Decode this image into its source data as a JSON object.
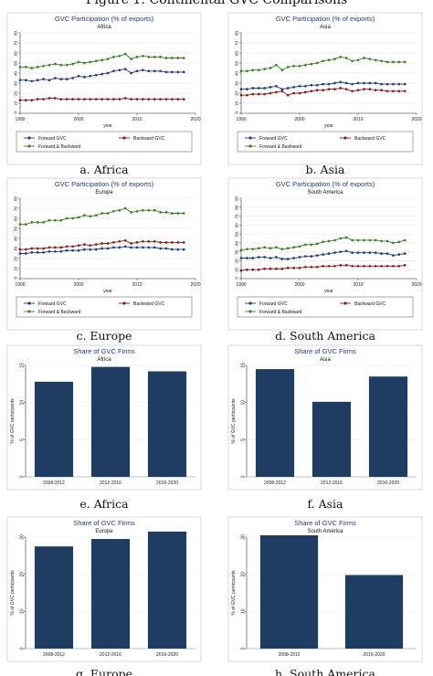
{
  "figure_title": "Figure 1: Continental GVC Comparisons",
  "chart_data": [
    {
      "type": "line",
      "caption": "a. Africa",
      "title": "GVC Participation (% of exports)",
      "subtitle": "Africa",
      "xlabel": "year",
      "ylim": [
        0,
        80
      ],
      "yticks": [
        0,
        10,
        20,
        30,
        40,
        50,
        60,
        70,
        80
      ],
      "xticks": [
        1990,
        2000,
        2010,
        2020
      ],
      "xlim": [
        1990,
        2020
      ],
      "x": [
        1990,
        1991,
        1992,
        1993,
        1994,
        1995,
        1996,
        1997,
        1998,
        1999,
        2000,
        2001,
        2002,
        2003,
        2004,
        2005,
        2006,
        2007,
        2008,
        2009,
        2010,
        2011,
        2012,
        2013,
        2014,
        2015,
        2016,
        2017,
        2018
      ],
      "series": [
        {
          "name": "Forward GVC",
          "color": "#1f3d7a",
          "values": [
            33,
            33,
            32,
            33,
            34,
            33,
            35,
            34,
            34,
            35,
            37,
            36,
            37,
            38,
            39,
            40,
            42,
            43,
            44,
            40,
            42,
            43,
            42,
            42,
            42,
            41,
            41,
            41,
            41
          ]
        },
        {
          "name": "Backward GVC",
          "color": "#8b1a1a",
          "values": [
            13,
            13,
            13,
            14,
            14,
            15,
            15,
            14,
            14,
            14,
            14,
            14,
            14,
            14,
            14,
            14,
            14,
            14,
            15,
            14,
            14,
            14,
            14,
            14,
            14,
            14,
            14,
            14,
            14
          ]
        },
        {
          "name": "Forward & Backward",
          "color": "#3f7f2a",
          "values": [
            46,
            46,
            45,
            46,
            47,
            48,
            49,
            48,
            48,
            49,
            51,
            50,
            51,
            52,
            53,
            54,
            56,
            57,
            59,
            54,
            56,
            57,
            56,
            56,
            56,
            55,
            55,
            55,
            55
          ]
        }
      ],
      "legend": "bottom"
    },
    {
      "type": "line",
      "caption": "b. Asia",
      "title": "GVC Participation (% of exports)",
      "subtitle": "Asia",
      "xlabel": "year",
      "ylim": [
        0,
        80
      ],
      "yticks": [
        0,
        10,
        20,
        30,
        40,
        50,
        60,
        70,
        80
      ],
      "xticks": [
        1990,
        2000,
        2010,
        2020
      ],
      "xlim": [
        1990,
        2020
      ],
      "x": [
        1990,
        1991,
        1992,
        1993,
        1994,
        1995,
        1996,
        1997,
        1998,
        1999,
        2000,
        2001,
        2002,
        2003,
        2004,
        2005,
        2006,
        2007,
        2008,
        2009,
        2010,
        2011,
        2012,
        2013,
        2014,
        2015,
        2016,
        2017,
        2018
      ],
      "series": [
        {
          "name": "Forward GVC",
          "color": "#1f3d7a",
          "values": [
            24,
            24,
            25,
            25,
            25,
            26,
            27,
            24,
            25,
            26,
            27,
            27,
            28,
            28,
            29,
            29,
            30,
            31,
            30,
            29,
            30,
            30,
            30,
            30,
            29,
            29,
            29,
            29,
            29
          ]
        },
        {
          "name": "Backward GVC",
          "color": "#8b1a1a",
          "values": [
            18,
            18,
            19,
            19,
            19,
            20,
            21,
            22,
            18,
            20,
            20,
            21,
            22,
            23,
            23,
            24,
            24,
            25,
            24,
            22,
            23,
            24,
            24,
            23,
            23,
            22,
            22,
            22,
            22
          ]
        },
        {
          "name": "Forward & Backward",
          "color": "#3f7f2a",
          "values": [
            42,
            42,
            43,
            43,
            44,
            45,
            48,
            43,
            46,
            47,
            47,
            48,
            49,
            50,
            52,
            53,
            54,
            56,
            55,
            52,
            53,
            55,
            54,
            53,
            52,
            51,
            51,
            51,
            51
          ]
        }
      ],
      "legend": "bottom"
    },
    {
      "type": "line",
      "caption": "c. Europe",
      "title": "GVC Participation (% of exports)",
      "subtitle": "Europe",
      "xlabel": "year",
      "ylim": [
        0,
        80
      ],
      "yticks": [
        0,
        10,
        20,
        30,
        40,
        50,
        60,
        70,
        80
      ],
      "xticks": [
        1990,
        2000,
        2010,
        2020
      ],
      "xlim": [
        1990,
        2020
      ],
      "x": [
        1990,
        1991,
        1992,
        1993,
        1994,
        1995,
        1996,
        1997,
        1998,
        1999,
        2000,
        2001,
        2002,
        2003,
        2004,
        2005,
        2006,
        2007,
        2008,
        2009,
        2010,
        2011,
        2012,
        2013,
        2014,
        2015,
        2016,
        2017,
        2018
      ],
      "series": [
        {
          "name": "Forward GVC",
          "color": "#1f3d7a",
          "values": [
            25,
            25,
            26,
            26,
            26,
            27,
            27,
            27,
            28,
            28,
            28,
            29,
            29,
            29,
            30,
            30,
            31,
            31,
            32,
            31,
            31,
            31,
            31,
            31,
            30,
            30,
            29,
            29,
            29
          ]
        },
        {
          "name": "Backward GVC",
          "color": "#8b1a1a",
          "values": [
            29,
            29,
            30,
            30,
            30,
            31,
            31,
            31,
            32,
            32,
            33,
            34,
            33,
            34,
            35,
            35,
            36,
            37,
            38,
            35,
            36,
            37,
            37,
            37,
            36,
            36,
            36,
            36,
            36
          ]
        },
        {
          "name": "Forward & Backward",
          "color": "#3f7f2a",
          "values": [
            54,
            54,
            56,
            56,
            56,
            58,
            58,
            58,
            60,
            60,
            61,
            63,
            62,
            63,
            65,
            65,
            67,
            68,
            70,
            66,
            67,
            68,
            68,
            68,
            66,
            66,
            65,
            65,
            65
          ]
        }
      ],
      "legend": "bottom"
    },
    {
      "type": "line",
      "caption": "d. South America",
      "title": "GVC Participation (% of exports)",
      "subtitle": "South America",
      "xlabel": "year",
      "ylim": [
        0,
        90
      ],
      "yticks": [
        0,
        10,
        20,
        30,
        40,
        50,
        60,
        70,
        80,
        90
      ],
      "xticks": [
        1990,
        2000,
        2010,
        2020
      ],
      "xlim": [
        1990,
        2020
      ],
      "x": [
        1990,
        1991,
        1992,
        1993,
        1994,
        1995,
        1996,
        1997,
        1998,
        1999,
        2000,
        2001,
        2002,
        2003,
        2004,
        2005,
        2006,
        2007,
        2008,
        2009,
        2010,
        2011,
        2012,
        2013,
        2014,
        2015,
        2016,
        2017,
        2018
      ],
      "series": [
        {
          "name": "Forward GVC",
          "color": "#1f3d7a",
          "values": [
            23,
            23,
            23,
            24,
            24,
            23,
            24,
            22,
            22,
            23,
            24,
            25,
            25,
            26,
            27,
            28,
            29,
            30,
            31,
            29,
            29,
            29,
            29,
            29,
            28,
            28,
            26,
            27,
            28
          ]
        },
        {
          "name": "Backward GVC",
          "color": "#8b1a1a",
          "values": [
            9,
            10,
            10,
            10,
            11,
            11,
            11,
            11,
            12,
            12,
            12,
            13,
            13,
            13,
            14,
            14,
            14,
            15,
            15,
            14,
            14,
            14,
            14,
            14,
            14,
            14,
            14,
            14,
            15
          ]
        },
        {
          "name": "Forward & Backward",
          "color": "#3f7f2a",
          "values": [
            32,
            33,
            33,
            34,
            35,
            34,
            35,
            33,
            34,
            35,
            36,
            38,
            38,
            39,
            41,
            42,
            43,
            45,
            46,
            43,
            43,
            43,
            43,
            43,
            42,
            42,
            40,
            41,
            43
          ]
        }
      ],
      "legend": "bottom"
    },
    {
      "type": "bar",
      "caption": "e. Africa",
      "title": "Share of GVC Firms",
      "subtitle": "Africa",
      "ylabel": "% of GVC participants",
      "ylim": [
        0,
        15
      ],
      "yticks": [
        0,
        5,
        10,
        15
      ],
      "categories": [
        "2008-2012",
        "2012-2016",
        "2016-2020"
      ],
      "values": [
        12.8,
        14.8,
        14.2
      ],
      "color": "#1f3d63"
    },
    {
      "type": "bar",
      "caption": "f. Asia",
      "title": "Share of GVC Firms",
      "subtitle": "Asia",
      "ylabel": "% of GVC participants",
      "ylim": [
        0,
        15
      ],
      "yticks": [
        0,
        5,
        10,
        15
      ],
      "categories": [
        "2008-2012",
        "2012-2016",
        "2016-2020"
      ],
      "values": [
        14.5,
        10.1,
        13.5
      ],
      "color": "#1f3d63"
    },
    {
      "type": "bar",
      "caption": "g. Europe",
      "title": "Share of GVC Firms",
      "subtitle": "Europe",
      "ylabel": "% of GVC participants",
      "ylim": [
        0,
        30
      ],
      "yticks": [
        0,
        10,
        20,
        30
      ],
      "categories": [
        "2008-2012",
        "2012-2016",
        "2016-2020"
      ],
      "values": [
        27.5,
        29.5,
        31.5
      ],
      "color": "#1f3d63"
    },
    {
      "type": "bar",
      "caption": "h. South America",
      "title": "Share of GVC Firms",
      "subtitle": "South America",
      "ylabel": "% of GVC participants",
      "ylim": [
        0,
        30
      ],
      "yticks": [
        0,
        10,
        20,
        30
      ],
      "categories": [
        "2008-2012",
        "2016-2020"
      ],
      "values": [
        30.5,
        19.8
      ],
      "color": "#1f3d63"
    }
  ]
}
